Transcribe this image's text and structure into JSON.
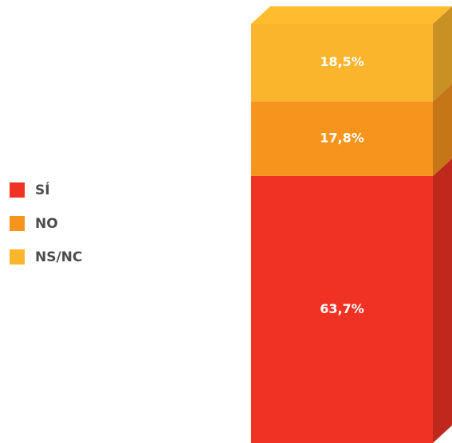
{
  "chart_data": {
    "type": "bar",
    "stacked": true,
    "legend": "left",
    "series": [
      {
        "name": "SÍ",
        "color": "#ef3224",
        "values": [
          63.7
        ],
        "value_labels": [
          "63,7%"
        ]
      },
      {
        "name": "NO",
        "color": "#f7941d",
        "values": [
          17.8
        ],
        "value_labels": [
          "17,8%"
        ]
      },
      {
        "name": "NS/NC",
        "color": "#fbb52c",
        "values": [
          18.5
        ],
        "value_labels": [
          "18,5%"
        ]
      }
    ]
  }
}
